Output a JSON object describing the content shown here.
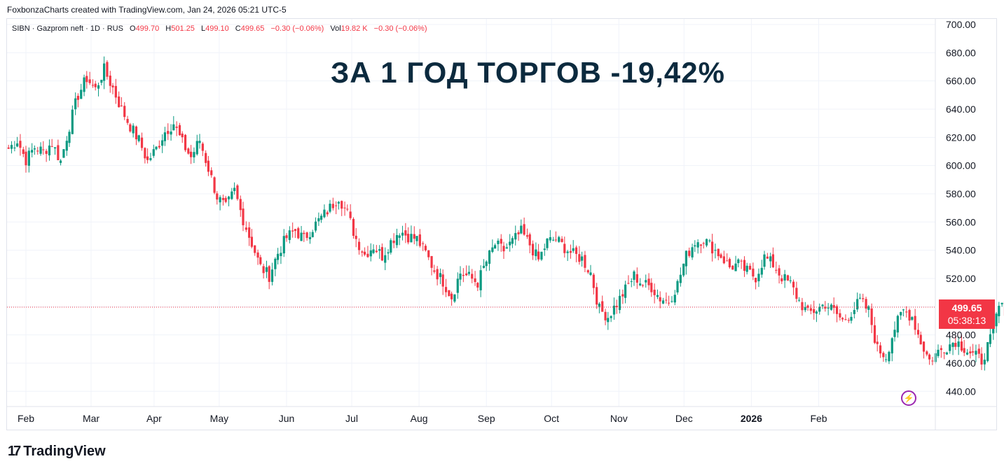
{
  "header": {
    "text": "FoxbonzaCharts created with TradingView.com, Jan 24, 2026 05:21 UTC-5"
  },
  "legend": {
    "symbol": "SIBN · Gazprom neft · 1D · RUS",
    "open_label": "O",
    "open": "499.70",
    "high_label": "H",
    "high": "501.25",
    "low_label": "L",
    "low": "499.10",
    "close_label": "C",
    "close": "499.65",
    "change": "−0.30 (−0.06%)",
    "vol_label": "Vol",
    "vol": "19.82 K",
    "vol_change": "−0.30 (−0.06%)"
  },
  "annotation": "ЗА 1 ГОД ТОРГОВ -19,42%",
  "price_badge": {
    "price": "499.65",
    "countdown": "05:38:13"
  },
  "brand": {
    "logo": "17",
    "name": "TradingView"
  },
  "colors": {
    "up": "#089981",
    "down": "#f23645",
    "grid": "#f0f3fa",
    "title": "#0c2a3e"
  },
  "chart_data": {
    "type": "candlestick",
    "y_ticks": [
      "700.00",
      "680.00",
      "660.00",
      "640.00",
      "620.00",
      "600.00",
      "580.00",
      "560.00",
      "540.00",
      "520.00",
      "500.00",
      "480.00",
      "460.00",
      "440.00"
    ],
    "y_tick_values": [
      700,
      680,
      660,
      640,
      620,
      600,
      580,
      560,
      540,
      520,
      500,
      480,
      460,
      440
    ],
    "x_ticks": [
      "Feb",
      "Mar",
      "Apr",
      "May",
      "Jun",
      "Jul",
      "Aug",
      "Sep",
      "Oct",
      "Nov",
      "Dec",
      "2026",
      "Feb"
    ],
    "x_tick_days": [
      0,
      30,
      59,
      89,
      120,
      150,
      181,
      212,
      242,
      273,
      303,
      334,
      365
    ],
    "ylim": [
      432,
      702
    ],
    "last_price": 499.65,
    "anchors": [
      [
        -8,
        612
      ],
      [
        -4,
        618
      ],
      [
        0,
        604
      ],
      [
        4,
        613
      ],
      [
        8,
        610
      ],
      [
        12,
        616
      ],
      [
        16,
        603
      ],
      [
        20,
        628
      ],
      [
        24,
        650
      ],
      [
        28,
        662
      ],
      [
        32,
        654
      ],
      [
        36,
        668
      ],
      [
        40,
        655
      ],
      [
        44,
        640
      ],
      [
        48,
        628
      ],
      [
        52,
        618
      ],
      [
        56,
        603
      ],
      [
        60,
        612
      ],
      [
        64,
        624
      ],
      [
        68,
        630
      ],
      [
        72,
        616
      ],
      [
        76,
        606
      ],
      [
        80,
        618
      ],
      [
        84,
        598
      ],
      [
        88,
        578
      ],
      [
        92,
        570
      ],
      [
        96,
        582
      ],
      [
        100,
        562
      ],
      [
        104,
        545
      ],
      [
        108,
        528
      ],
      [
        112,
        522
      ],
      [
        116,
        538
      ],
      [
        120,
        549
      ],
      [
        124,
        554
      ],
      [
        128,
        548
      ],
      [
        132,
        556
      ],
      [
        136,
        563
      ],
      [
        140,
        570
      ],
      [
        144,
        578
      ],
      [
        148,
        566
      ],
      [
        152,
        548
      ],
      [
        156,
        537
      ],
      [
        160,
        543
      ],
      [
        164,
        536
      ],
      [
        168,
        546
      ],
      [
        172,
        554
      ],
      [
        176,
        550
      ],
      [
        180,
        548
      ],
      [
        184,
        538
      ],
      [
        188,
        526
      ],
      [
        192,
        518
      ],
      [
        196,
        507
      ],
      [
        200,
        524
      ],
      [
        204,
        521
      ],
      [
        208,
        517
      ],
      [
        212,
        532
      ],
      [
        216,
        544
      ],
      [
        220,
        540
      ],
      [
        224,
        546
      ],
      [
        228,
        553
      ],
      [
        232,
        544
      ],
      [
        236,
        533
      ],
      [
        240,
        546
      ],
      [
        244,
        548
      ],
      [
        248,
        542
      ],
      [
        252,
        537
      ],
      [
        256,
        534
      ],
      [
        260,
        524
      ],
      [
        264,
        498
      ],
      [
        268,
        493
      ],
      [
        272,
        502
      ],
      [
        276,
        512
      ],
      [
        280,
        522
      ],
      [
        284,
        516
      ],
      [
        288,
        514
      ],
      [
        292,
        506
      ],
      [
        296,
        504
      ],
      [
        300,
        516
      ],
      [
        304,
        536
      ],
      [
        308,
        546
      ],
      [
        312,
        548
      ],
      [
        316,
        542
      ],
      [
        320,
        536
      ],
      [
        324,
        528
      ],
      [
        328,
        530
      ],
      [
        332,
        525
      ],
      [
        336,
        521
      ],
      [
        340,
        535
      ],
      [
        344,
        530
      ],
      [
        348,
        521
      ],
      [
        352,
        516
      ],
      [
        356,
        504
      ],
      [
        360,
        495
      ],
      [
        364,
        498
      ],
      [
        368,
        502
      ],
      [
        372,
        497
      ],
      [
        376,
        490
      ],
      [
        380,
        496
      ],
      [
        384,
        504
      ],
      [
        388,
        497
      ],
      [
        392,
        470
      ],
      [
        396,
        465
      ],
      [
        400,
        485
      ],
      [
        404,
        497
      ],
      [
        408,
        493
      ],
      [
        412,
        475
      ],
      [
        416,
        462
      ],
      [
        420,
        468
      ],
      [
        424,
        472
      ],
      [
        428,
        476
      ],
      [
        432,
        471
      ],
      [
        436,
        466
      ],
      [
        440,
        462
      ],
      [
        444,
        476
      ],
      [
        448,
        500
      ],
      [
        452,
        497
      ],
      [
        456,
        493
      ],
      [
        460,
        488
      ],
      [
        464,
        492
      ],
      [
        468,
        486
      ],
      [
        472,
        497
      ],
      [
        476,
        500
      ],
      [
        480,
        507
      ],
      [
        484,
        502
      ],
      [
        488,
        497
      ],
      [
        492,
        491
      ],
      [
        496,
        484
      ],
      [
        500,
        494
      ],
      [
        504,
        493
      ],
      [
        508,
        488
      ],
      [
        512,
        476
      ],
      [
        516,
        478
      ],
      [
        520,
        484
      ],
      [
        524,
        489
      ],
      [
        528,
        496
      ],
      [
        532,
        500
      ],
      [
        536,
        499.65
      ]
    ]
  }
}
